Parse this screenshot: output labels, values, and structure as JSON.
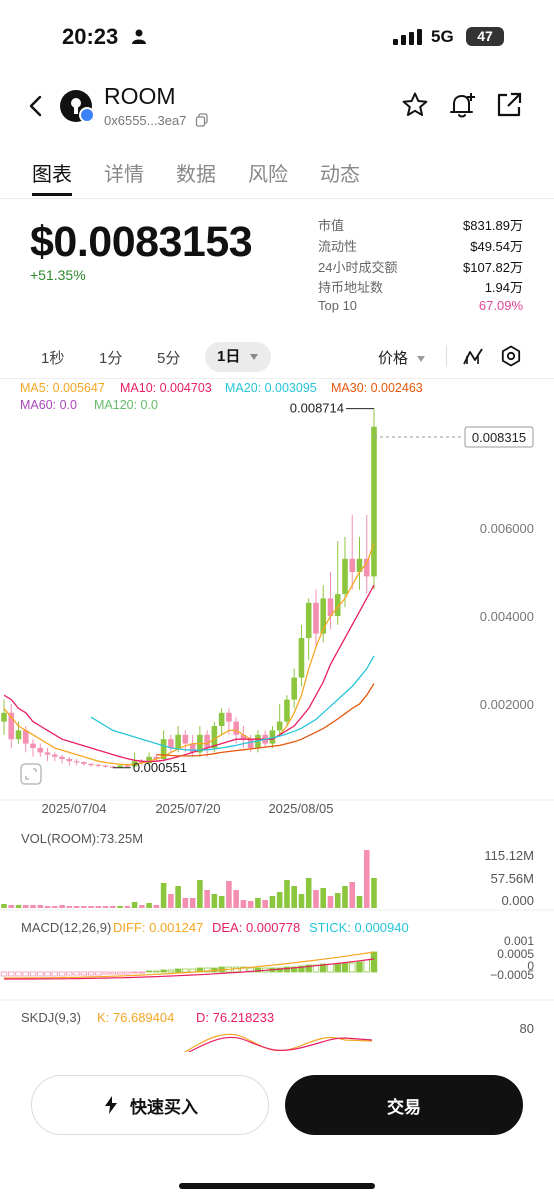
{
  "status_bar": {
    "time": "20:23",
    "network": "5G",
    "battery": "47"
  },
  "header": {
    "name": "ROOM",
    "address": "0x6555...3ea7"
  },
  "tabs": [
    "图表",
    "详情",
    "数据",
    "风险",
    "动态"
  ],
  "price": {
    "value": "$0.0083153",
    "change": "+51.35%"
  },
  "stats": [
    {
      "label": "市值",
      "value": "$831.89万"
    },
    {
      "label": "流动性",
      "value": "$49.54万"
    },
    {
      "label": "24小时成交额",
      "value": "$107.82万"
    },
    {
      "label": "持币地址数",
      "value": "1.94万"
    },
    {
      "label": "Top 10",
      "value": "67.09%"
    }
  ],
  "timeframes": [
    "1秒",
    "1分",
    "5分",
    "1日"
  ],
  "price_select": "价格",
  "ma_legend": {
    "ma5": "MA5: 0.005647",
    "ma10": "MA10: 0.004703",
    "ma20": "MA20: 0.003095",
    "ma30": "MA30: 0.002463",
    "ma60": "MA60: 0.0",
    "ma120": "MA120: 0.0"
  },
  "colors": {
    "up": "#8cc63f",
    "down": "#f48fb1",
    "ma5": "#f5a623",
    "ma10": "#e91e63",
    "ma20": "#26c6da",
    "ma30": "#e8580c",
    "ma60": "#ab47bc",
    "ma120": "#66bb6a",
    "top10": "#e0479e"
  },
  "chart_data": {
    "type": "candlestick",
    "x_ticks": [
      "2025/07/04",
      "2025/07/20",
      "2025/08/05"
    ],
    "y_ticks": [
      "0.006000",
      "0.004000",
      "0.002000"
    ],
    "high_label": "0.008714",
    "low_label": "0.000551",
    "current_label": "0.008315",
    "candles": [
      [
        0.0016,
        0.0018,
        0.0013,
        0.0021
      ],
      [
        0.0018,
        0.0012,
        0.001,
        0.002
      ],
      [
        0.0012,
        0.0014,
        0.0011,
        0.0016
      ],
      [
        0.0014,
        0.0011,
        0.0009,
        0.0015
      ],
      [
        0.0011,
        0.001,
        0.0008,
        0.0012
      ],
      [
        0.001,
        0.0009,
        0.0008,
        0.0011
      ],
      [
        0.0009,
        0.00085,
        0.0007,
        0.001
      ],
      [
        0.00085,
        0.0008,
        0.0007,
        0.0009
      ],
      [
        0.0008,
        0.00075,
        0.00065,
        0.00085
      ],
      [
        0.00075,
        0.0007,
        0.0006,
        0.0008
      ],
      [
        0.0007,
        0.00068,
        0.0006,
        0.00075
      ],
      [
        0.00068,
        0.00064,
        0.0006,
        0.0007
      ],
      [
        0.00064,
        0.00062,
        0.00057,
        0.00066
      ],
      [
        0.00062,
        0.0006,
        0.00056,
        0.00064
      ],
      [
        0.0006,
        0.00058,
        0.00055,
        0.00062
      ],
      [
        0.00058,
        0.00056,
        0.000551,
        0.0006
      ],
      [
        0.00056,
        0.0006,
        0.00055,
        0.00062
      ],
      [
        0.0006,
        0.00058,
        0.00055,
        0.00062
      ],
      [
        0.00058,
        0.0007,
        0.00056,
        0.0009
      ],
      [
        0.0007,
        0.00065,
        0.0006,
        0.00075
      ],
      [
        0.00065,
        0.0008,
        0.0006,
        0.0009
      ],
      [
        0.0008,
        0.00075,
        0.0007,
        0.00085
      ],
      [
        0.00075,
        0.0012,
        0.0007,
        0.0014
      ],
      [
        0.0012,
        0.001,
        0.0009,
        0.0013
      ],
      [
        0.001,
        0.0013,
        0.0009,
        0.0015
      ],
      [
        0.0013,
        0.0011,
        0.0009,
        0.0014
      ],
      [
        0.0011,
        0.0009,
        0.0008,
        0.0013
      ],
      [
        0.0009,
        0.0013,
        0.0008,
        0.0015
      ],
      [
        0.0013,
        0.001,
        0.0008,
        0.0014
      ],
      [
        0.001,
        0.0015,
        0.0009,
        0.0016
      ],
      [
        0.0015,
        0.0018,
        0.0013,
        0.0019
      ],
      [
        0.0018,
        0.0016,
        0.0013,
        0.0019
      ],
      [
        0.0016,
        0.0013,
        0.0011,
        0.0017
      ],
      [
        0.0013,
        0.0012,
        0.001,
        0.0015
      ],
      [
        0.0012,
        0.001,
        0.0009,
        0.0013
      ],
      [
        0.001,
        0.0013,
        0.0009,
        0.0014
      ],
      [
        0.0013,
        0.0011,
        0.001,
        0.0014
      ],
      [
        0.0011,
        0.0014,
        0.001,
        0.0015
      ],
      [
        0.0014,
        0.0016,
        0.0013,
        0.002
      ],
      [
        0.0016,
        0.0021,
        0.0015,
        0.0022
      ],
      [
        0.0021,
        0.0026,
        0.0019,
        0.0028
      ],
      [
        0.0026,
        0.0035,
        0.0024,
        0.0038
      ],
      [
        0.0035,
        0.0043,
        0.003,
        0.0044
      ],
      [
        0.0043,
        0.0036,
        0.0033,
        0.0046
      ],
      [
        0.0036,
        0.0044,
        0.0034,
        0.0047
      ],
      [
        0.0044,
        0.004,
        0.0037,
        0.005
      ],
      [
        0.004,
        0.0045,
        0.0038,
        0.0057
      ],
      [
        0.0045,
        0.0053,
        0.0042,
        0.0058
      ],
      [
        0.0053,
        0.005,
        0.0046,
        0.0063
      ],
      [
        0.005,
        0.0053,
        0.0046,
        0.0058
      ],
      [
        0.0053,
        0.0049,
        0.0045,
        0.0063
      ],
      [
        0.0049,
        0.0083,
        0.0046,
        0.008714
      ]
    ],
    "ma_series": {
      "ma5": [
        0.0019,
        0.0017,
        0.0015,
        0.0014,
        0.0013,
        0.0012,
        0.0011,
        0.001,
        0.00095,
        0.0009,
        0.00085,
        0.0008,
        0.00075,
        0.0007,
        0.00067,
        0.00065,
        0.00063,
        0.00062,
        0.00063,
        0.00066,
        0.0007,
        0.00075,
        0.0008,
        0.0009,
        0.00098,
        0.00105,
        0.0011,
        0.0011,
        0.0011,
        0.0012,
        0.0013,
        0.0014,
        0.0014,
        0.0013,
        0.0012,
        0.0012,
        0.0012,
        0.0012,
        0.0013,
        0.0015,
        0.0018,
        0.0022,
        0.0028,
        0.0033,
        0.0037,
        0.004,
        0.0042,
        0.0044,
        0.0047,
        0.005,
        0.0052,
        0.005647
      ],
      "ma10": [
        0.0022,
        0.0021,
        0.0019,
        0.0018,
        0.0016,
        0.0015,
        0.0014,
        0.0013,
        0.0012,
        0.00115,
        0.0011,
        0.00105,
        0.001,
        0.00095,
        0.0009,
        0.00085,
        0.0008,
        0.00076,
        0.00072,
        0.0007,
        0.00069,
        0.0007,
        0.00072,
        0.00076,
        0.0008,
        0.00085,
        0.0009,
        0.00095,
        0.001,
        0.00105,
        0.0011,
        0.00115,
        0.0012,
        0.0012,
        0.0012,
        0.0012,
        0.0012,
        0.0012,
        0.0013,
        0.0014,
        0.0015,
        0.0017,
        0.0019,
        0.0022,
        0.0025,
        0.0029,
        0.0032,
        0.0035,
        0.0038,
        0.0041,
        0.0044,
        0.004703
      ],
      "ma20": [
        null,
        null,
        null,
        null,
        null,
        null,
        null,
        null,
        null,
        null,
        null,
        null,
        0.0017,
        0.0016,
        0.0015,
        0.0014,
        0.00135,
        0.0013,
        0.00125,
        0.0012,
        0.00115,
        0.0011,
        0.00105,
        0.001,
        0.00098,
        0.00096,
        0.00095,
        0.00095,
        0.00096,
        0.00098,
        0.001,
        0.00103,
        0.00106,
        0.0011,
        0.00113,
        0.00116,
        0.0012,
        0.00123,
        0.00127,
        0.00132,
        0.00138,
        0.00145,
        0.00155,
        0.00165,
        0.0018,
        0.00195,
        0.0021,
        0.00225,
        0.0024,
        0.0026,
        0.0028,
        0.003095
      ],
      "ma30": [
        null,
        null,
        null,
        null,
        null,
        null,
        null,
        null,
        null,
        null,
        null,
        null,
        null,
        null,
        null,
        null,
        null,
        null,
        null,
        null,
        null,
        0.00085,
        0.00084,
        0.00083,
        0.00082,
        0.00082,
        0.00082,
        0.00083,
        0.00085,
        0.00087,
        0.0009,
        0.00092,
        0.00094,
        0.00096,
        0.00098,
        0.001,
        0.00102,
        0.00104,
        0.00106,
        0.0011,
        0.00114,
        0.0012,
        0.00128,
        0.00136,
        0.00144,
        0.00155,
        0.00166,
        0.00178,
        0.0019,
        0.002,
        0.0022,
        0.002463
      ]
    },
    "volume": {
      "label": "VOL(ROOM):73.25M",
      "ticks": [
        "115.12M",
        "57.56M",
        "0.000"
      ]
    },
    "macd": {
      "label": "MACD(12,26,9)",
      "diff": "DIFF: 0.001247",
      "dea": "DEA: 0.000778",
      "stick": "STICK: 0.000940",
      "ticks": [
        "0.001",
        "0.0005",
        "0",
        "−0.0005"
      ]
    },
    "skdj": {
      "label": "SKDJ(9,3)",
      "k": "K: 76.689404",
      "d": "D: 76.218233",
      "tick": "80"
    }
  },
  "buttons": {
    "quick_buy": "快速买入",
    "trade": "交易"
  }
}
